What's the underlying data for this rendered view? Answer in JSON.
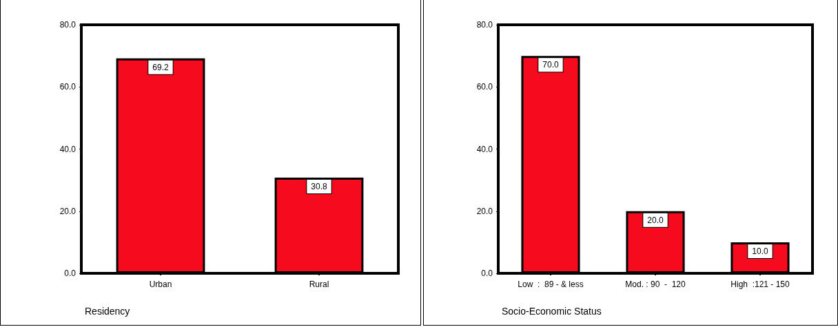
{
  "chart_data": [
    {
      "type": "bar",
      "xlabel": "Residency",
      "categories": [
        "Urban",
        "Rural"
      ],
      "values": [
        69.2,
        30.8
      ],
      "value_labels": [
        "69.2",
        "30.8"
      ],
      "color": "#f50a1e",
      "ylim": [
        0,
        80
      ],
      "yticks": [
        {
          "value": 0,
          "label": "0.0"
        },
        {
          "value": 20,
          "label": "20.0"
        },
        {
          "value": 40,
          "label": "40.0"
        },
        {
          "value": 60,
          "label": "60.0"
        },
        {
          "value": 80,
          "label": "80.0"
        }
      ]
    },
    {
      "type": "bar",
      "xlabel": "Socio-Economic Status",
      "categories": [
        "Low  :  89 - & less",
        "Mod. : 90  -  120",
        "High  :121 - 150"
      ],
      "values": [
        70.0,
        20.0,
        10.0
      ],
      "value_labels": [
        "70.0",
        "20.0",
        "10.0"
      ],
      "color": "#f50a1e",
      "ylim": [
        0,
        80
      ],
      "yticks": [
        {
          "value": 0,
          "label": "0.0"
        },
        {
          "value": 20,
          "label": "20.0"
        },
        {
          "value": 40,
          "label": "40.0"
        },
        {
          "value": 60,
          "label": "60.0"
        },
        {
          "value": 80,
          "label": "80.0"
        }
      ]
    }
  ]
}
